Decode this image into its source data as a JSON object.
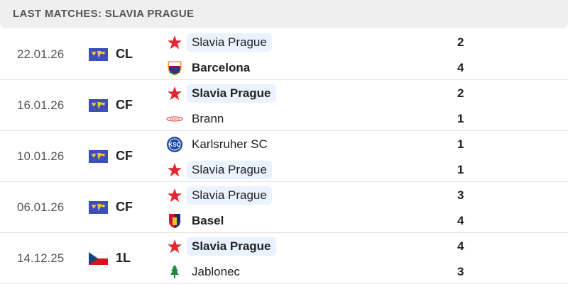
{
  "header": {
    "title": "LAST MATCHES: SLAVIA PRAGUE"
  },
  "colors": {
    "highlight": "#eaf2fd",
    "slavia_red": "#e3262f"
  },
  "matches": [
    {
      "date": "22.01.26",
      "competition": "CL",
      "flag": "world-flag-icon",
      "home": {
        "name": "Slavia Prague",
        "logo": "slavia-star-icon",
        "score": "2",
        "highlight": true,
        "win": false
      },
      "away": {
        "name": "Barcelona",
        "logo": "barcelona-crest-icon",
        "score": "4",
        "highlight": false,
        "win": true
      }
    },
    {
      "date": "16.01.26",
      "competition": "CF",
      "flag": "world-flag-icon",
      "home": {
        "name": "Slavia Prague",
        "logo": "slavia-star-icon",
        "score": "2",
        "highlight": true,
        "win": true
      },
      "away": {
        "name": "Brann",
        "logo": "brann-crest-icon",
        "score": "1",
        "highlight": false,
        "win": false
      }
    },
    {
      "date": "10.01.26",
      "competition": "CF",
      "flag": "world-flag-icon",
      "home": {
        "name": "Karlsruher SC",
        "logo": "ksc-crest-icon",
        "score": "1",
        "highlight": false,
        "win": false
      },
      "away": {
        "name": "Slavia Prague",
        "logo": "slavia-star-icon",
        "score": "1",
        "highlight": true,
        "win": false
      }
    },
    {
      "date": "06.01.26",
      "competition": "CF",
      "flag": "world-flag-icon",
      "home": {
        "name": "Slavia Prague",
        "logo": "slavia-star-icon",
        "score": "3",
        "highlight": true,
        "win": false
      },
      "away": {
        "name": "Basel",
        "logo": "basel-crest-icon",
        "score": "4",
        "highlight": false,
        "win": true
      }
    },
    {
      "date": "14.12.25",
      "competition": "1L",
      "flag": "czech-flag-icon",
      "home": {
        "name": "Slavia Prague",
        "logo": "slavia-star-icon",
        "score": "4",
        "highlight": true,
        "win": true
      },
      "away": {
        "name": "Jablonec",
        "logo": "jablonec-crest-icon",
        "score": "3",
        "highlight": false,
        "win": false
      }
    }
  ]
}
